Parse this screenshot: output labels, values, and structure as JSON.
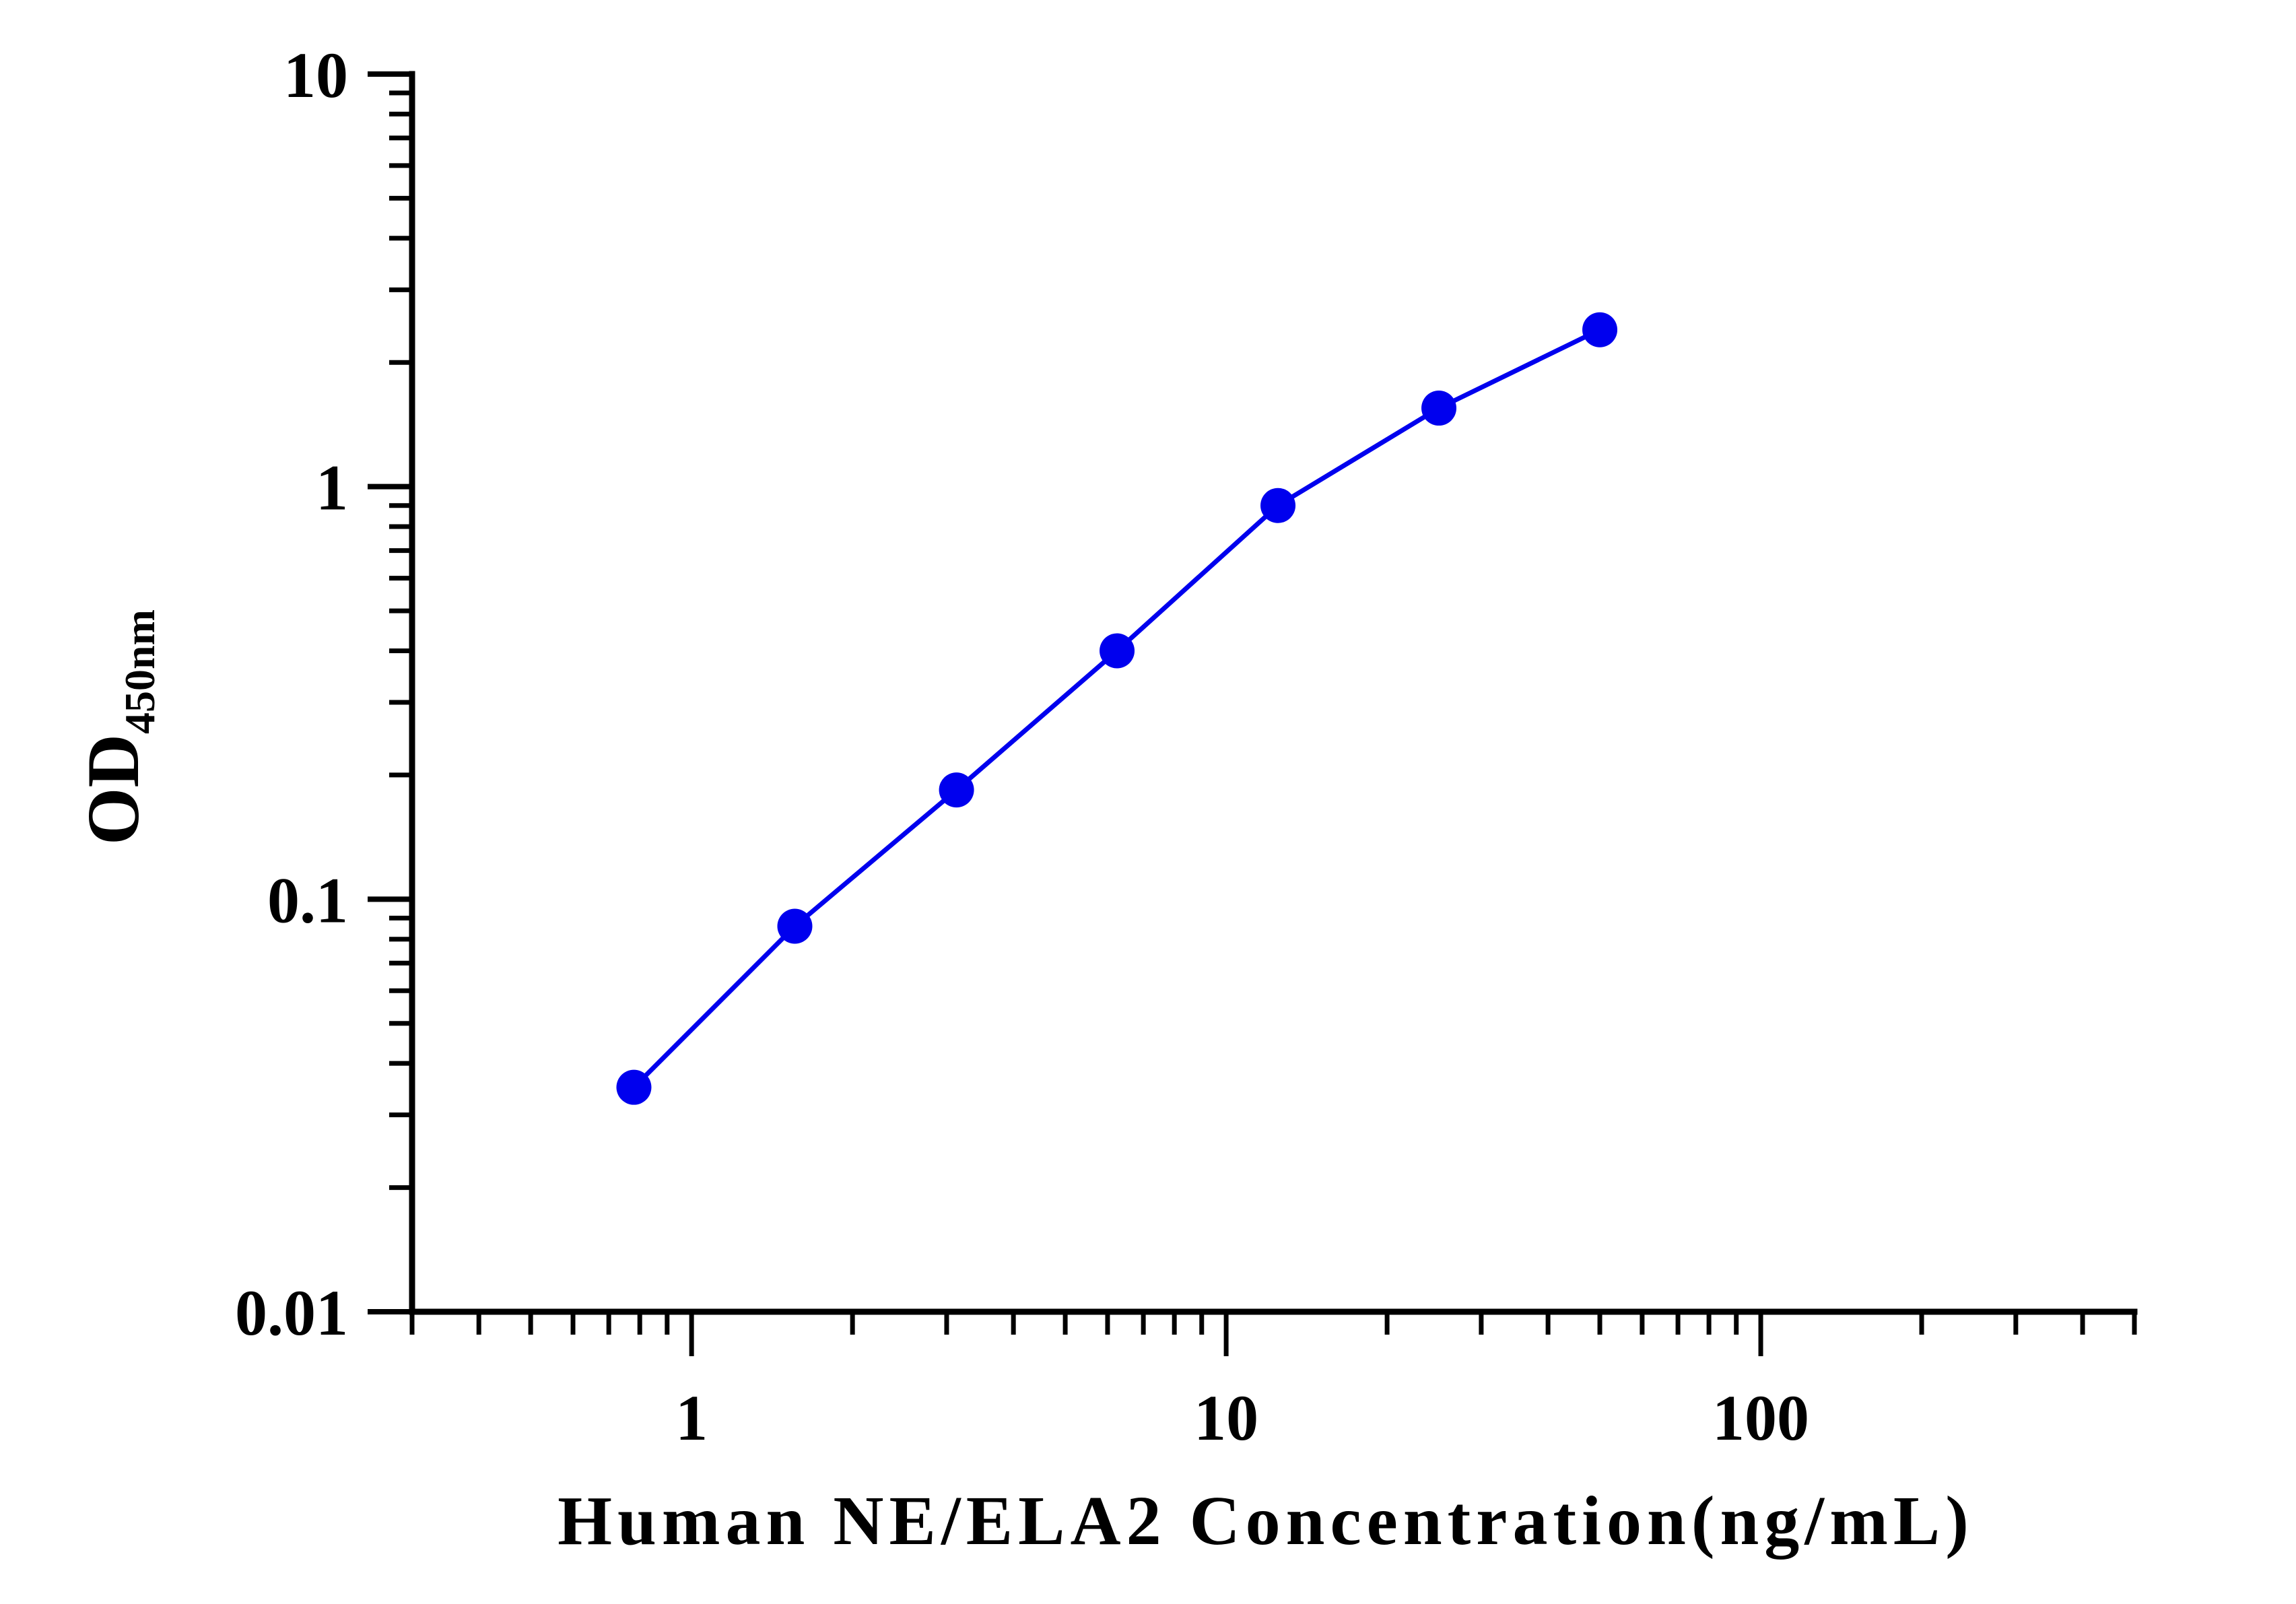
{
  "chart_data": {
    "type": "line",
    "xlabel": "Human NE/ELA2 Concentration(ng/mL)",
    "ylabel": "OD",
    "ylabel_subscript": "450nm",
    "x_scale": "log",
    "y_scale": "log",
    "xlim": [
      0.3,
      500
    ],
    "ylim": [
      0.01,
      10
    ],
    "x_ticks": [
      {
        "value": 1,
        "label": "1"
      },
      {
        "value": 10,
        "label": "10"
      },
      {
        "value": 100,
        "label": "100"
      }
    ],
    "y_ticks": [
      {
        "value": 0.01,
        "label": "0.01"
      },
      {
        "value": 0.1,
        "label": "0.1"
      },
      {
        "value": 1,
        "label": "1"
      },
      {
        "value": 10,
        "label": "10"
      }
    ],
    "grid": false,
    "legend": "none",
    "series": [
      {
        "color": "#0000ee",
        "marker": "circle",
        "x": [
          0.78,
          1.56,
          3.13,
          6.25,
          12.5,
          25,
          50
        ],
        "y": [
          0.035,
          0.086,
          0.184,
          0.4,
          0.9,
          1.55,
          2.4
        ]
      }
    ]
  }
}
